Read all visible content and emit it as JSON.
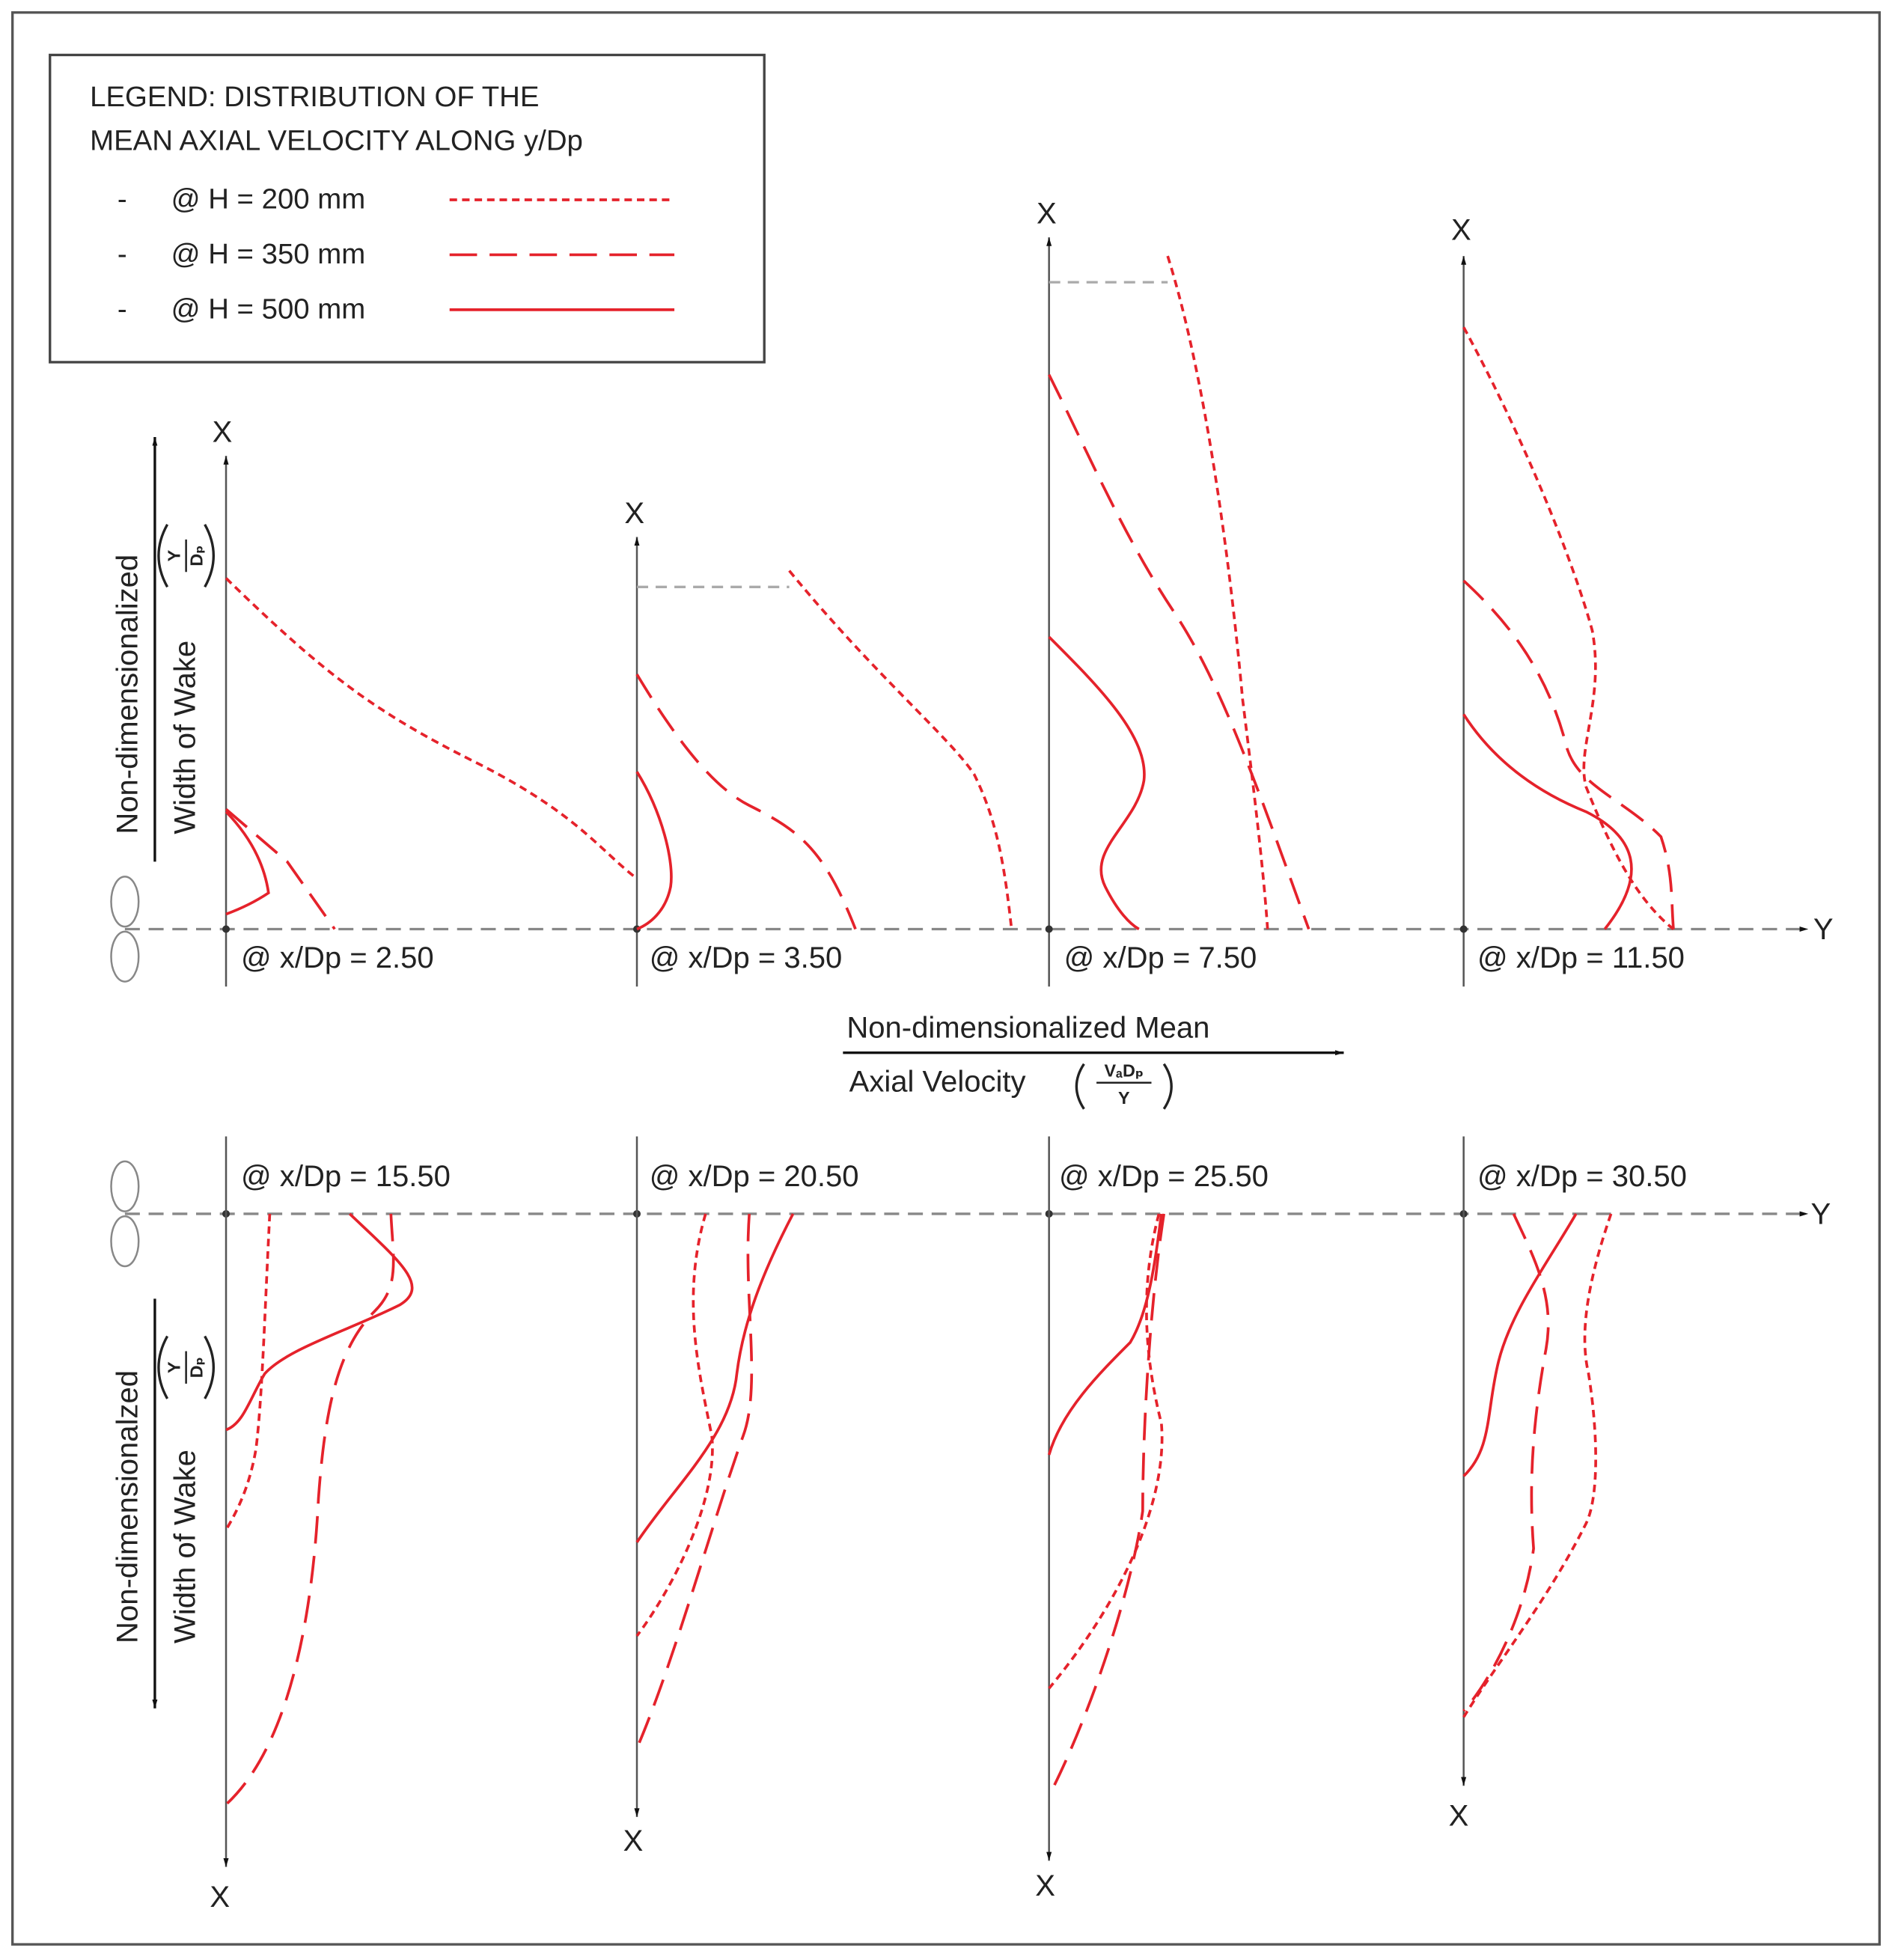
{
  "legend": {
    "title_lines": [
      "LEGEND: DISTRIBUTION OF THE",
      "MEAN AXIAL VELOCITY ALONG y/Dp"
    ],
    "items": [
      {
        "bullet": "-",
        "label": "@ H = 200 mm"
      },
      {
        "bullet": "-",
        "label": "@ H = 350 mm"
      },
      {
        "bullet": "-",
        "label": "@ H = 500 mm"
      }
    ]
  },
  "axis_letters": {
    "x": "X",
    "y": "Y"
  },
  "wake_axis": {
    "top": {
      "line1": "Non-dimensionalized",
      "line2": "Width of Wake"
    },
    "bottom": {
      "line1": "Non-dimensionalzed",
      "line2": "Width of Wake"
    },
    "fraction": {
      "numerator": "Y",
      "denominator": "Dₚ"
    }
  },
  "velocity_axis": {
    "line1": "Non-dimensionalized Mean",
    "line2": "Axial Velocity",
    "fraction": {
      "numerator": "VₐDₚ",
      "denominator": "Y"
    }
  },
  "panels": [
    {
      "label": "@ x/Dp = 2.50"
    },
    {
      "label": "@ x/Dp = 3.50"
    },
    {
      "label": "@ x/Dp = 7.50"
    },
    {
      "label": "@ x/Dp = 11.50"
    },
    {
      "label": "@ x/Dp = 15.50"
    },
    {
      "label": "@ x/Dp = 20.50"
    },
    {
      "label": "@ x/Dp = 25.50"
    },
    {
      "label": "@ x/Dp = 30.50"
    }
  ]
}
